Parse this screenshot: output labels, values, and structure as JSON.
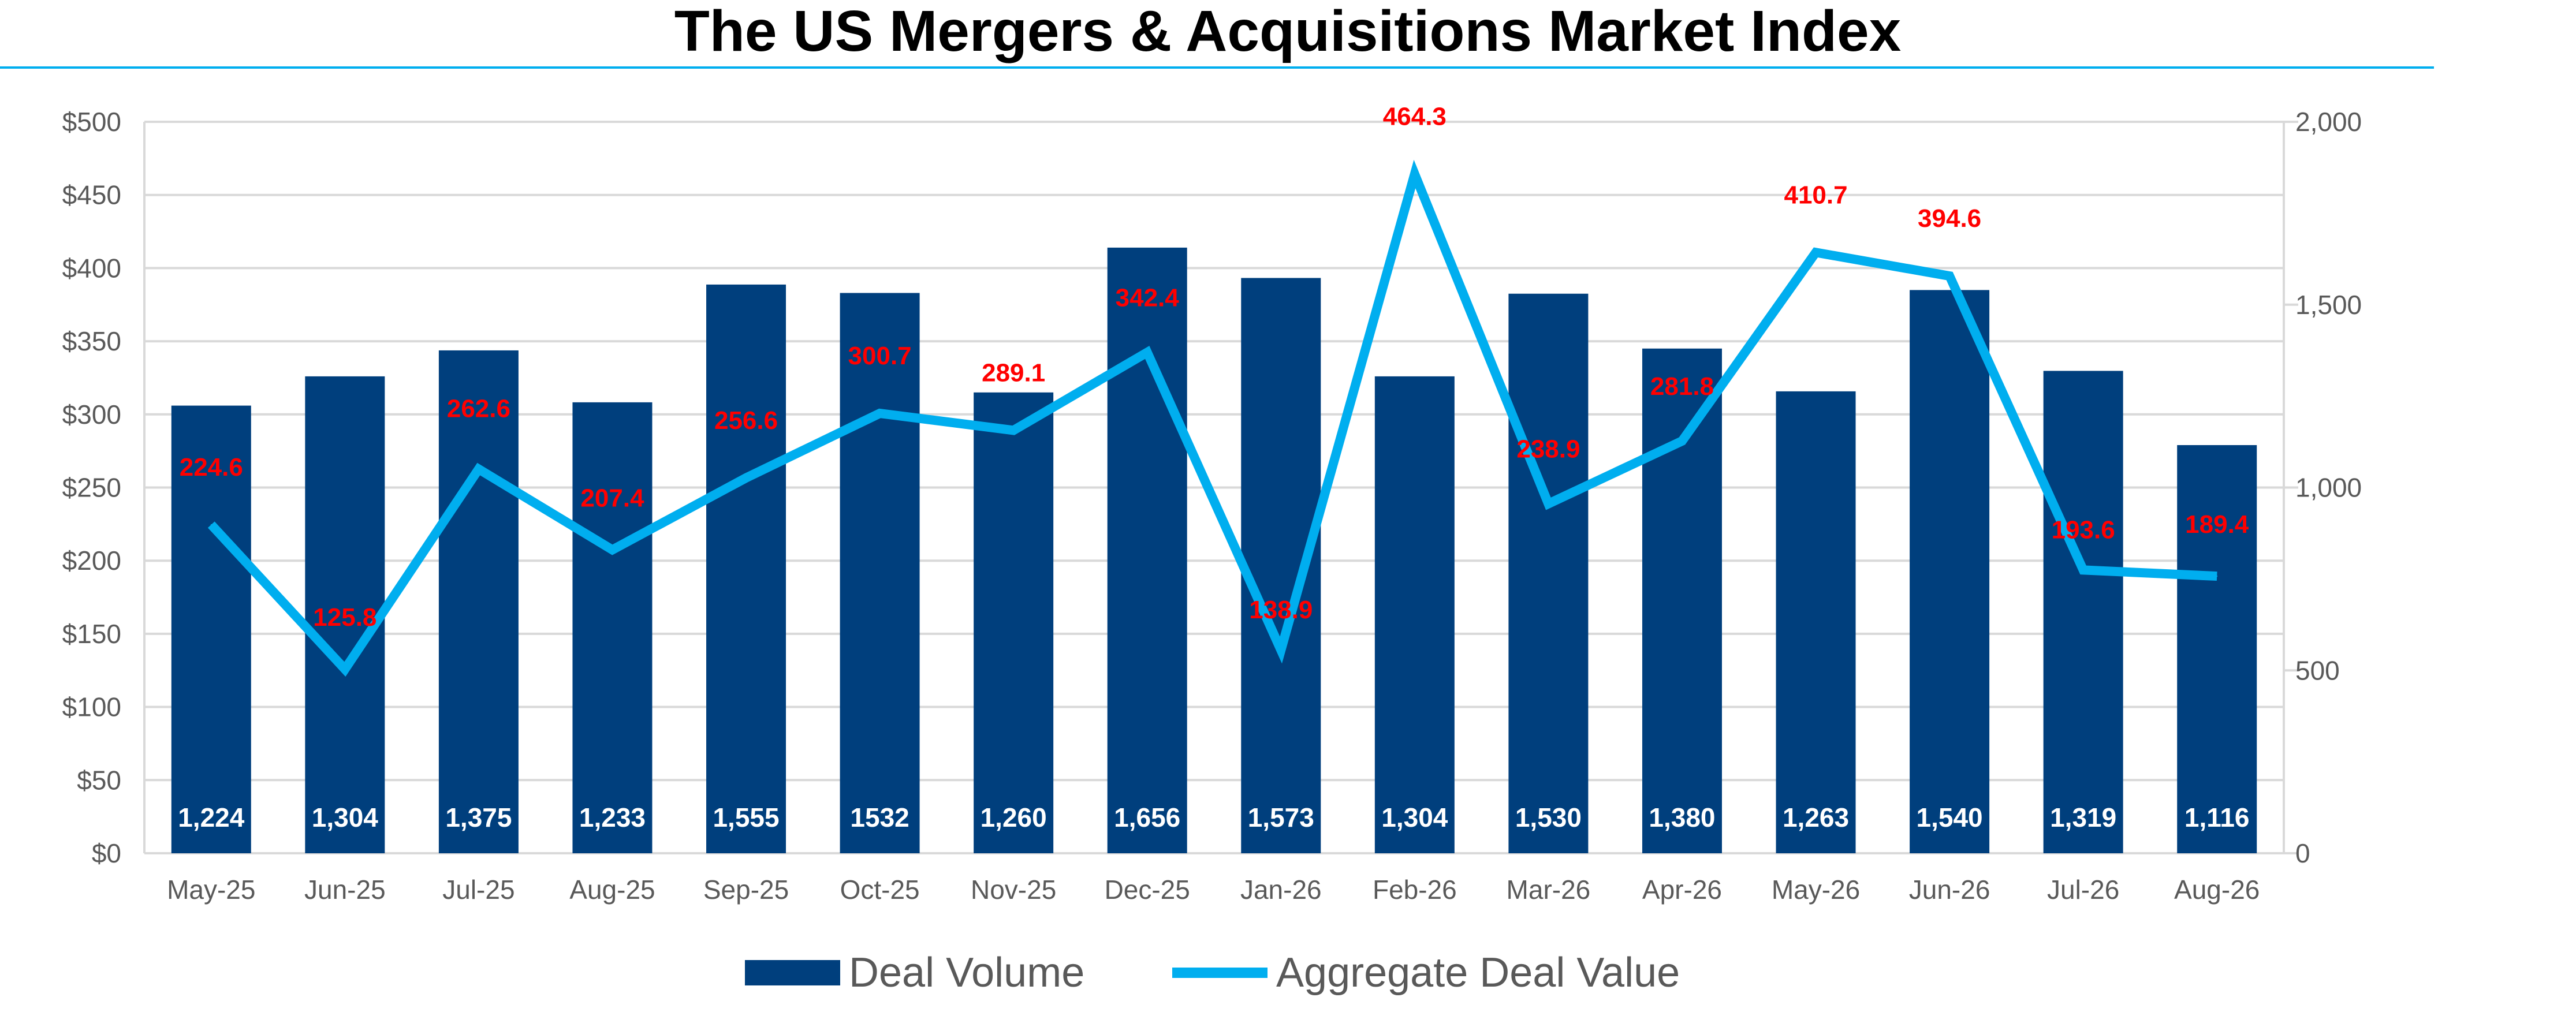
{
  "chart_data": {
    "type": "bar",
    "title": "The US Mergers & Acquisitions Market Index",
    "categories": [
      "May-25",
      "Jun-25",
      "Jul-25",
      "Aug-25",
      "Sep-25",
      "Oct-25",
      "Nov-25",
      "Dec-25",
      "Jan-26",
      "Feb-26",
      "Mar-26",
      "Apr-26",
      "May-26",
      "Jun-26",
      "Jul-26",
      "Aug-26"
    ],
    "series": [
      {
        "name": "Deal Volume",
        "type": "bar",
        "axis": "right",
        "color": "#003f7d",
        "values": [
          1224,
          1304,
          1375,
          1233,
          1555,
          1532,
          1260,
          1656,
          1573,
          1304,
          1530,
          1380,
          1263,
          1540,
          1319,
          1116
        ],
        "labels": [
          "1,224",
          "1,304",
          "1,375",
          "1,233",
          "1,555",
          "1532",
          "1,260",
          "1,656",
          "1,573",
          "1,304",
          "1,530",
          "1,380",
          "1,263",
          "1,540",
          "1,319",
          "1,116"
        ]
      },
      {
        "name": "Aggregate Deal Value",
        "type": "line",
        "axis": "right",
        "color": "#00aeef",
        "values": [
          224.6,
          125.8,
          262.6,
          207.4,
          256.6,
          300.7,
          289.1,
          342.4,
          138.9,
          464.3,
          238.9,
          281.8,
          410.7,
          394.6,
          193.6,
          189.4
        ],
        "labels": [
          "224.6",
          "125.8",
          "262.6",
          "207.4",
          "256.6",
          "300.7",
          "289.1",
          "342.4",
          "138.9",
          "464.3",
          "238.9",
          "281.8",
          "410.7",
          "394.6",
          "193.6",
          "189.4"
        ]
      }
    ],
    "y_left": {
      "range": [
        0,
        500
      ],
      "ticks": [
        "$0",
        "$50",
        "$100",
        "$150",
        "$200",
        "$250",
        "$300",
        "$350",
        "$400",
        "$450",
        "$500"
      ]
    },
    "y_right": {
      "range": [
        0,
        2000
      ],
      "ticks": [
        "0",
        "500",
        "1,000",
        "1,500",
        "2,000"
      ]
    },
    "grid": true,
    "legend_position": "bottom",
    "label_color": "#ff0000",
    "title_rule_color": "#00aeef"
  }
}
